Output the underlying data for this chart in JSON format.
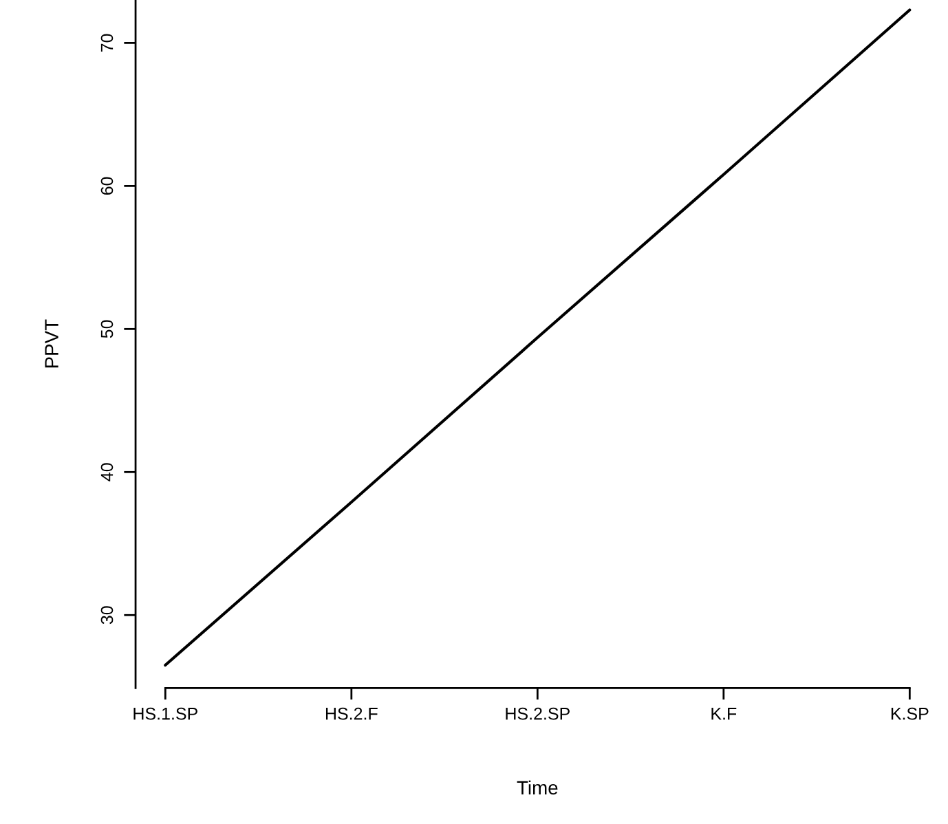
{
  "chart_data": {
    "type": "line",
    "xlabel": "Time",
    "ylabel": "PPVT",
    "categories": [
      "HS.1.SP",
      "HS.2.F",
      "HS.2.SP",
      "K.F",
      "K.SP"
    ],
    "series": [
      {
        "color": "#000000",
        "values": [
          26.5,
          37.9,
          49.4,
          60.8,
          72.3
        ]
      }
    ],
    "ylim": [
      24.9,
      73.0
    ],
    "yticks": [
      30,
      40,
      50,
      60,
      70
    ],
    "grid": false,
    "marker": "none",
    "line_style": "solid"
  }
}
